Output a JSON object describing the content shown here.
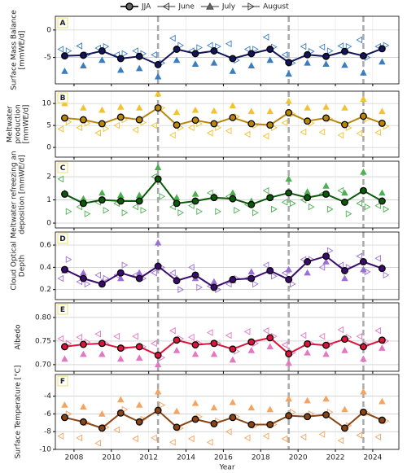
{
  "chart_data": {
    "type": "line",
    "xlabel": "Year",
    "xlim": [
      2007.0,
      2025.4
    ],
    "xticks": [
      2008,
      2010,
      2012,
      2014,
      2016,
      2018,
      2020,
      2022,
      2024
    ],
    "events_x": [
      2012.5,
      2019.5,
      2023.5
    ],
    "grid": true,
    "series": [
      {
        "name": "JJA",
        "marker": "circle",
        "x": [
          2007.5,
          2008.5,
          2009.5,
          2010.5,
          2011.5,
          2012.5,
          2013.5,
          2014.5,
          2015.5,
          2016.5,
          2017.5,
          2018.5,
          2019.5,
          2020.5,
          2021.5,
          2022.5,
          2023.5,
          2024.5
        ]
      },
      {
        "name": "June",
        "marker": "triangle-left",
        "x": [
          2007.3,
          2008.3,
          2009.3,
          2010.3,
          2011.3,
          2012.3,
          2013.3,
          2014.3,
          2015.3,
          2016.3,
          2017.3,
          2018.3,
          2019.3,
          2020.3,
          2021.3,
          2022.3,
          2023.3,
          2024.3
        ]
      },
      {
        "name": "July",
        "marker": "triangle-up",
        "x": [
          2007.5,
          2008.5,
          2009.5,
          2010.5,
          2011.5,
          2012.5,
          2013.5,
          2014.5,
          2015.5,
          2016.5,
          2017.5,
          2018.5,
          2019.5,
          2020.5,
          2021.5,
          2022.5,
          2023.5,
          2024.5
        ]
      },
      {
        "name": "August",
        "marker": "triangle-right",
        "x": [
          2007.7,
          2008.7,
          2009.7,
          2010.7,
          2011.7,
          2012.7,
          2013.7,
          2014.7,
          2015.7,
          2016.7,
          2017.7,
          2018.7,
          2019.7,
          2020.7,
          2021.7,
          2022.7,
          2023.7,
          2024.7
        ]
      }
    ],
    "panels": [
      {
        "label": "A",
        "ylabel": [
          "Surface Mass Balance",
          "[mmWE/d]"
        ],
        "color": "#14145a",
        "month_color": "#3a7dc0",
        "ylim": [
          -9.8,
          2.5
        ],
        "yticks": [
          0,
          -5
        ],
        "series": [
          {
            "values": [
              -4.7,
              -4.6,
              -3.8,
              -5.2,
              -4.8,
              -6.3,
              -3.5,
              -4.3,
              -3.8,
              -5.2,
              -4.3,
              -3.5,
              -5.9,
              -4.5,
              -4.8,
              -3.9,
              -4.7,
              -3.4
            ]
          },
          {
            "values": [
              -3.5,
              -2.9,
              -3.3,
              -4.5,
              -3.8,
              -4.5,
              -1.5,
              -3.8,
              -2.8,
              -2.5,
              -3.5,
              -1.3,
              -4.5,
              -3.0,
              -3.1,
              -2.9,
              -1.8,
              -3.0
            ]
          },
          {
            "values": [
              -7.5,
              -6.5,
              -5.5,
              -7.3,
              -7.0,
              -8.5,
              -5.5,
              -6.2,
              -6.0,
              -7.5,
              -6.5,
              -5.5,
              -8.0,
              -6.0,
              -6.2,
              -6.4,
              -7.8,
              -5.8
            ]
          },
          {
            "values": [
              -3.8,
              -4.5,
              -3.0,
              -4.3,
              -4.3,
              -6.0,
              -2.8,
              -3.2,
              -3.0,
              -5.5,
              -3.5,
              -3.1,
              -6.0,
              -3.9,
              -3.8,
              -3.0,
              -5.0,
              -2.8
            ]
          }
        ]
      },
      {
        "label": "B",
        "ylabel": [
          "Meltwater",
          "production",
          "[mmWE/d]"
        ],
        "color": "#b8860b",
        "month_color": "#f2c230",
        "ylim": [
          -2.2,
          12.8
        ],
        "yticks": [
          0,
          5,
          10
        ],
        "series": [
          {
            "values": [
              6.7,
              6.3,
              5.4,
              6.9,
              6.3,
              9.0,
              5.1,
              6.2,
              5.4,
              6.8,
              5.4,
              5.1,
              7.9,
              6.0,
              6.7,
              5.2,
              7.1,
              5.5
            ]
          },
          {
            "values": [
              4.2,
              4.5,
              3.3,
              5.0,
              4.0,
              5.0,
              2.8,
              4.5,
              3.3,
              3.8,
              3.0,
              2.6,
              5.6,
              3.5,
              3.5,
              2.8,
              3.2,
              3.4
            ]
          },
          {
            "values": [
              10.0,
              9.0,
              8.5,
              9.2,
              9.0,
              12.2,
              8.0,
              8.5,
              8.3,
              9.5,
              8.2,
              8.2,
              10.5,
              9.0,
              9.2,
              9.0,
              11.0,
              8.2
            ]
          },
          {
            "values": [
              5.8,
              5.5,
              4.3,
              6.3,
              5.7,
              9.0,
              4.5,
              5.4,
              4.5,
              7.0,
              5.0,
              4.5,
              7.6,
              5.5,
              6.5,
              4.5,
              6.5,
              4.8
            ]
          }
        ]
      },
      {
        "label": "C",
        "ylabel": [
          "Meltwater refreezing an",
          "deposition [mmWE/d]"
        ],
        "color": "#0a5a0a",
        "month_color": "#4caf50",
        "ylim": [
          -0.21,
          2.67
        ],
        "yticks": [
          0,
          1,
          2
        ],
        "series": [
          {
            "values": [
              1.25,
              0.85,
              1.0,
              0.95,
              0.95,
              1.9,
              0.85,
              0.95,
              1.1,
              1.05,
              0.8,
              1.1,
              1.3,
              1.1,
              1.25,
              0.9,
              1.4,
              0.95
            ]
          },
          {
            "values": [
              1.9,
              0.7,
              0.9,
              0.85,
              0.7,
              2.0,
              0.7,
              0.75,
              1.3,
              1.15,
              0.8,
              1.4,
              0.9,
              1.0,
              1.25,
              1.4,
              0.85,
              0.75
            ]
          },
          {
            "values": [
              1.3,
              1.05,
              1.3,
              1.2,
              1.2,
              2.4,
              1.1,
              1.25,
              1.15,
              1.3,
              0.95,
              1.1,
              1.9,
              1.35,
              1.6,
              1.3,
              2.2,
              1.3
            ]
          },
          {
            "values": [
              0.5,
              0.4,
              0.55,
              0.45,
              0.55,
              1.15,
              0.45,
              0.5,
              0.5,
              0.55,
              0.45,
              0.6,
              0.85,
              0.7,
              0.6,
              0.4,
              0.7,
              0.6
            ]
          }
        ]
      },
      {
        "label": "D",
        "ylabel": [
          "Cloud Optical",
          "Depth"
        ],
        "color": "#3d0a6e",
        "month_color": "#9b6fd6",
        "ylim": [
          0.11,
          0.717
        ],
        "yticks": [
          0.2,
          0.4,
          0.6
        ],
        "series": [
          {
            "values": [
              0.38,
              0.3,
              0.25,
              0.35,
              0.3,
              0.41,
              0.28,
              0.33,
              0.22,
              0.29,
              0.3,
              0.37,
              0.29,
              0.45,
              0.5,
              0.37,
              0.45,
              0.39
            ]
          },
          {
            "values": [
              0.3,
              0.27,
              0.33,
              0.33,
              0.33,
              0.35,
              0.35,
              0.4,
              0.23,
              0.25,
              0.3,
              0.42,
              0.35,
              0.47,
              0.4,
              0.42,
              0.5,
              0.48
            ]
          },
          {
            "values": [
              0.37,
              0.35,
              0.27,
              0.3,
              0.35,
              0.62,
              0.3,
              0.3,
              0.27,
              0.28,
              0.36,
              0.37,
              0.38,
              0.35,
              0.45,
              0.3,
              0.38,
              0.4
            ]
          },
          {
            "values": [
              0.47,
              0.25,
              0.3,
              0.42,
              0.3,
              0.4,
              0.2,
              0.22,
              0.2,
              0.3,
              0.25,
              0.32,
              0.25,
              0.47,
              0.55,
              0.4,
              0.36,
              0.33
            ]
          }
        ]
      },
      {
        "label": "E",
        "ylabel": [
          "Albedo"
        ],
        "color": "#dc143c",
        "month_color": "#e377c2",
        "ylim": [
          0.686,
          0.831
        ],
        "yticks": [
          {
            "value": 0.7,
            "label": "0.70"
          },
          0.75,
          {
            "value": 0.8,
            "label": "0.80"
          }
        ],
        "series": [
          {
            "values": [
              0.738,
              0.743,
              0.745,
              0.735,
              0.738,
              0.72,
              0.752,
              0.742,
              0.745,
              0.733,
              0.748,
              0.757,
              0.723,
              0.744,
              0.741,
              0.754,
              0.738,
              0.752
            ]
          },
          {
            "values": [
              0.755,
              0.758,
              0.765,
              0.76,
              0.76,
              0.745,
              0.772,
              0.758,
              0.768,
              0.762,
              0.77,
              0.772,
              0.742,
              0.762,
              0.76,
              0.774,
              0.76,
              0.772
            ]
          },
          {
            "values": [
              0.712,
              0.722,
              0.722,
              0.712,
              0.714,
              0.7,
              0.73,
              0.722,
              0.722,
              0.71,
              0.73,
              0.738,
              0.703,
              0.725,
              0.722,
              0.73,
              0.712,
              0.735
            ]
          },
          {
            "values": [
              0.745,
              0.748,
              0.745,
              0.735,
              0.738,
              0.715,
              0.755,
              0.745,
              0.745,
              0.728,
              0.745,
              0.76,
              0.725,
              0.745,
              0.742,
              0.758,
              0.742,
              0.75
            ]
          }
        ]
      },
      {
        "label": "F",
        "ylabel": [
          "Surface Temperature [°C]"
        ],
        "color": "#8b4513",
        "month_color": "#f4a460",
        "ylim": [
          -10,
          -1.55
        ],
        "yticks": [
          -4,
          -6,
          -8,
          -10
        ],
        "series": [
          {
            "values": [
              -6.4,
              -6.9,
              -7.6,
              -5.9,
              -6.9,
              -5.6,
              -7.5,
              -6.6,
              -7.1,
              -6.4,
              -7.2,
              -7.2,
              -6.2,
              -6.3,
              -6.1,
              -7.6,
              -5.8,
              -6.7
            ]
          },
          {
            "values": [
              -8.5,
              -8.7,
              -9.3,
              -7.8,
              -8.8,
              -8.7,
              -9.2,
              -8.8,
              -9.2,
              -8.0,
              -8.7,
              -8.5,
              -8.8,
              -8.6,
              -8.3,
              -9.0,
              -8.4,
              -8.6
            ]
          },
          {
            "values": [
              -5.0,
              -5.2,
              -6.0,
              -4.4,
              -5.0,
              -3.5,
              -5.7,
              -4.8,
              -5.3,
              -4.7,
              -5.3,
              -5.5,
              -4.3,
              -4.5,
              -4.3,
              -5.5,
              -3.5,
              -4.6
            ]
          },
          {
            "values": [
              -6.0,
              -7.0,
              -7.5,
              -5.5,
              -6.6,
              -5.0,
              -7.6,
              -6.3,
              -6.8,
              -6.3,
              -7.3,
              -7.2,
              -5.8,
              -6.0,
              -5.8,
              -7.3,
              -5.9,
              -6.8
            ]
          }
        ]
      }
    ]
  }
}
